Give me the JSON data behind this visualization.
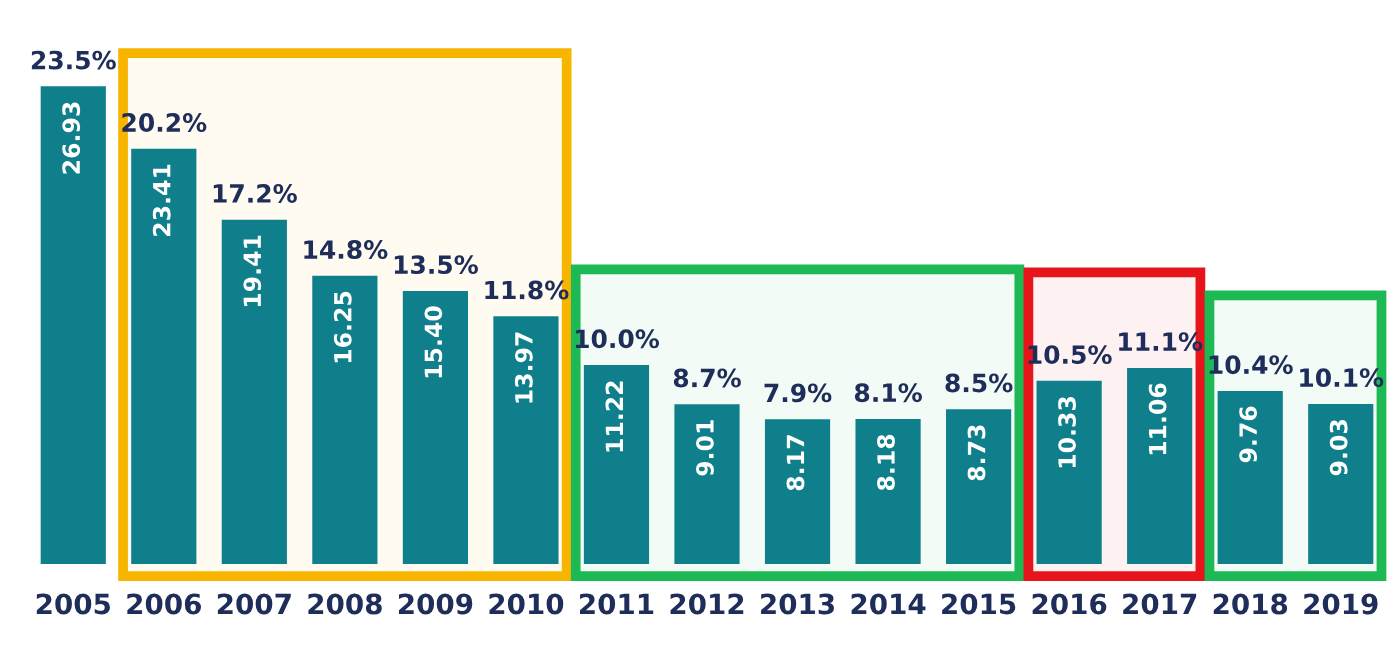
{
  "chart_data": {
    "type": "bar",
    "categories": [
      "2005",
      "2006",
      "2007",
      "2008",
      "2009",
      "2010",
      "2011",
      "2012",
      "2013",
      "2014",
      "2015",
      "2016",
      "2017",
      "2018",
      "2019"
    ],
    "values": [
      26.93,
      23.41,
      19.41,
      16.25,
      15.4,
      13.97,
      11.22,
      9.01,
      8.17,
      8.18,
      8.73,
      10.33,
      11.06,
      9.76,
      9.03
    ],
    "color": "#0f7f8c",
    "value_labels": [
      "26.93",
      "23.41",
      "19.41",
      "16.25",
      "15.40",
      "13.97",
      "11.22",
      "9.01",
      "8.17",
      "8.18",
      "8.73",
      "10.33",
      "11.06",
      "9.76",
      "9.03"
    ],
    "annotations": [
      {
        "text": "23.5%",
        "x": "2005",
        "y": 26.93
      },
      {
        "text": "20.2%",
        "x": "2006",
        "y": 23.41
      },
      {
        "text": "17.2%",
        "x": "2007",
        "y": 19.41
      },
      {
        "text": "14.8%",
        "x": "2008",
        "y": 16.25
      },
      {
        "text": "13.5%",
        "x": "2009",
        "y": 15.4
      },
      {
        "text": "11.8%",
        "x": "2010",
        "y": 13.97
      },
      {
        "text": "10.0%",
        "x": "2011",
        "y": 11.22
      },
      {
        "text": "8.7%",
        "x": "2012",
        "y": 9.01
      },
      {
        "text": "7.9%",
        "x": "2013",
        "y": 8.17
      },
      {
        "text": "8.1%",
        "x": "2014",
        "y": 8.18
      },
      {
        "text": "8.5%",
        "x": "2015",
        "y": 8.73
      },
      {
        "text": "10.5%",
        "x": "2016",
        "y": 10.33
      },
      {
        "text": "11.1%",
        "x": "2017",
        "y": 11.06
      },
      {
        "text": "10.4%",
        "x": "2018",
        "y": 9.76
      },
      {
        "text": "10.1%",
        "x": "2019",
        "y": 9.03
      }
    ],
    "bands": [
      {
        "axis": "x",
        "from": "2006",
        "to": "2010",
        "color": "#f7b500"
      },
      {
        "axis": "x",
        "from": "2011",
        "to": "2015",
        "color": "#1db954"
      },
      {
        "axis": "x",
        "from": "2016",
        "to": "2017",
        "color": "#e8141b"
      },
      {
        "axis": "x",
        "from": "2018",
        "to": "2019",
        "color": "#1db954"
      }
    ],
    "grid": false,
    "legend": false
  }
}
